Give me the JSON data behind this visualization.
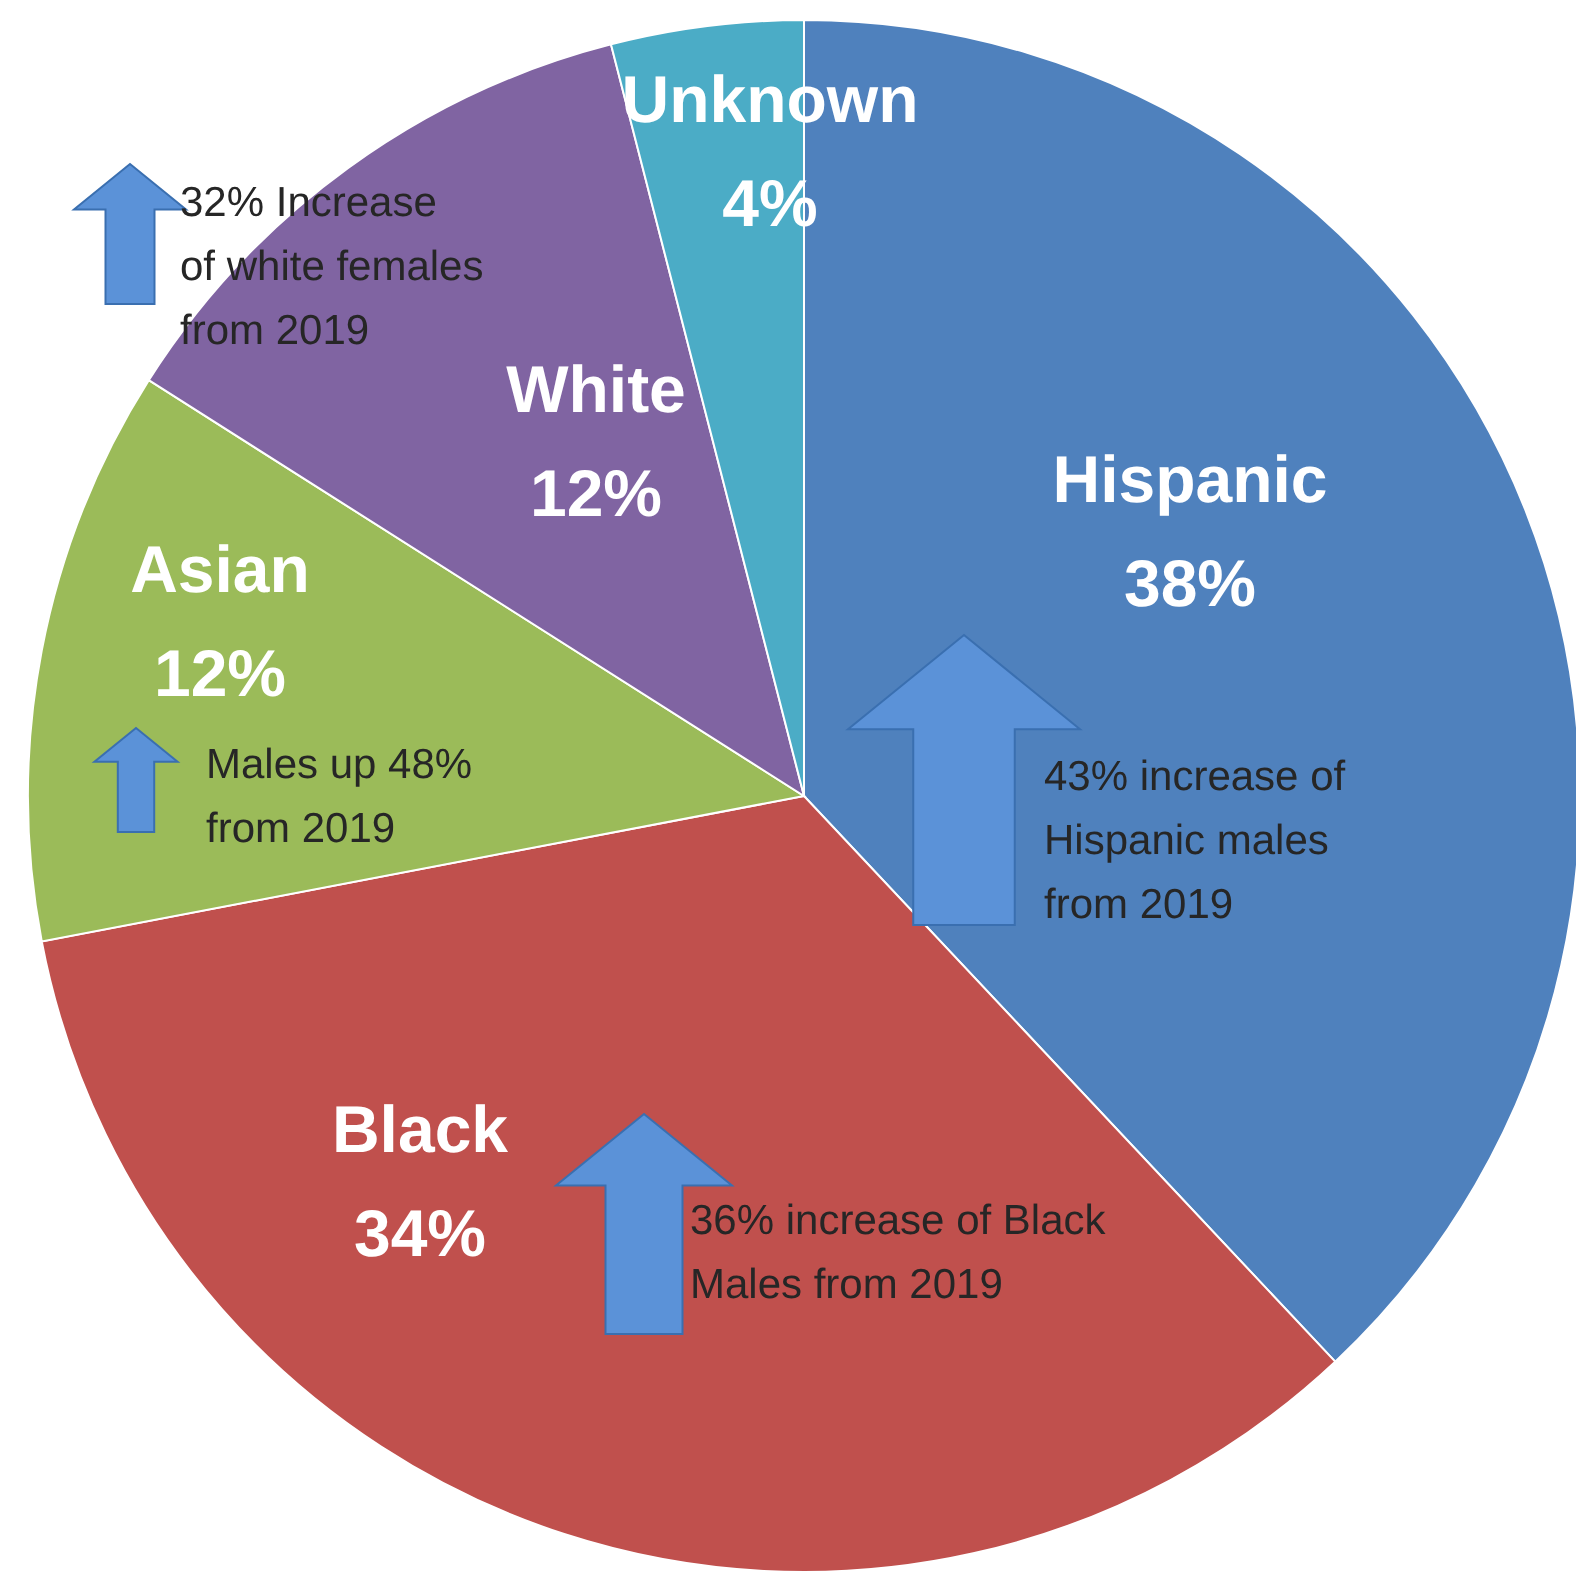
{
  "chart_data": {
    "type": "pie",
    "categories": [
      "Hispanic",
      "Black",
      "Asian",
      "White",
      "Unknown"
    ],
    "values": [
      38,
      34,
      12,
      12,
      4
    ],
    "value_labels": [
      "38%",
      "34%",
      "12%",
      "12%",
      "4%"
    ],
    "colors": [
      "#4f81bd",
      "#c0504d",
      "#9bbb59",
      "#8064a2",
      "#4bacc6"
    ],
    "annotations": [
      "32% Increase\nof white females\nfrom 2019",
      "Males up 48%\nfrom 2019",
      "43% increase of\nHispanic males\nfrom 2019",
      "36% increase of Black\nMales from 2019"
    ],
    "legend": false
  }
}
